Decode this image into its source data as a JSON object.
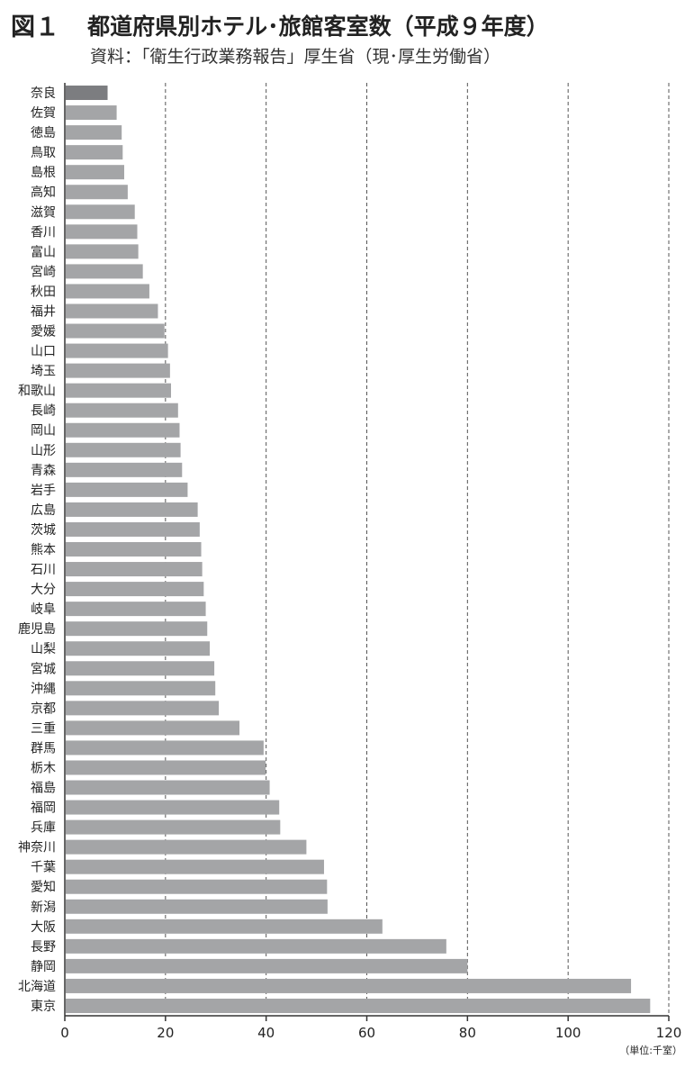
{
  "header": {
    "figure_number": "図１",
    "title": "都道府県別ホテル･旅館客室数（平成９年度）",
    "source": "資料：「衛生行政業務報告」厚生省（現･厚生労働省）"
  },
  "chart_data": {
    "type": "bar",
    "orientation": "horizontal",
    "categories": [
      "奈良",
      "佐賀",
      "徳島",
      "鳥取",
      "島根",
      "高知",
      "滋賀",
      "香川",
      "富山",
      "宮崎",
      "秋田",
      "福井",
      "愛媛",
      "山口",
      "埼玉",
      "和歌山",
      "長崎",
      "岡山",
      "山形",
      "青森",
      "岩手",
      "広島",
      "茨城",
      "熊本",
      "石川",
      "大分",
      "岐阜",
      "鹿児島",
      "山梨",
      "宮城",
      "沖縄",
      "京都",
      "三重",
      "群馬",
      "栃木",
      "福島",
      "福岡",
      "兵庫",
      "神奈川",
      "千葉",
      "愛知",
      "新潟",
      "大阪",
      "長野",
      "静岡",
      "北海道",
      "東京"
    ],
    "values": [
      8.5,
      10.3,
      11.3,
      11.5,
      11.8,
      12.5,
      13.9,
      14.4,
      14.6,
      15.5,
      16.8,
      18.5,
      19.8,
      20.5,
      20.9,
      21.1,
      22.5,
      22.8,
      23.0,
      23.3,
      24.4,
      26.4,
      26.8,
      27.1,
      27.3,
      27.6,
      28.0,
      28.3,
      28.8,
      29.7,
      29.9,
      30.6,
      34.7,
      39.5,
      39.9,
      40.7,
      42.6,
      42.8,
      48.0,
      51.5,
      52.1,
      52.2,
      63.1,
      75.8,
      80.0,
      112.5,
      116.3
    ],
    "highlight_index": 0,
    "xlim": [
      0,
      120
    ],
    "x_ticks": [
      0,
      20,
      40,
      60,
      80,
      100,
      120
    ],
    "x_tick_labels": [
      "0",
      "20",
      "40",
      "60",
      "80",
      "100",
      "120"
    ],
    "unit_label": "（単位:千室）",
    "grid": "vertical dashed",
    "colors": {
      "bar": "#a4a5a7",
      "highlight_bar": "#7c7d80",
      "grid": "#555555",
      "axis": "#333333"
    }
  }
}
